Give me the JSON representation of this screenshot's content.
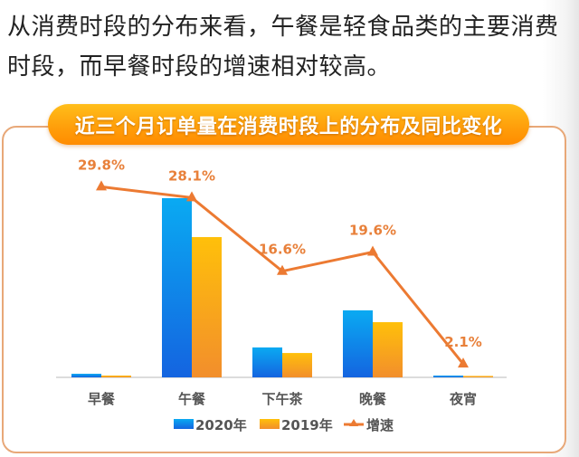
{
  "intro": {
    "line1": "从消费时段的分布来看，午餐是轻食品类的主要消费",
    "line2": "时段，而早餐时段的增速相对较高。"
  },
  "colors": {
    "bar2020_top": "#0aaaf2",
    "bar2020_bottom": "#1464e0",
    "bar2019_top": "#ffc00a",
    "bar2019_bottom": "#f28e2c",
    "growth_line": "#ec7a32",
    "frame_border": "#e8a878",
    "axis": "#dcdcdc"
  },
  "chart_data": {
    "type": "bar",
    "title": "近三个月订单量在消费时段上的分布及同比变化",
    "xlabel": "",
    "ylabel": "",
    "categories": [
      "早餐",
      "午餐",
      "下午茶",
      "晚餐",
      "夜宵"
    ],
    "series": [
      {
        "name": "2020年",
        "kind": "bar",
        "values": [
          2.0,
          100,
          16.7,
          37.4,
          1.0
        ]
      },
      {
        "name": "2019年",
        "kind": "bar",
        "values": [
          1.0,
          78.3,
          13.6,
          30.8,
          0.8
        ]
      },
      {
        "name": "增速",
        "kind": "line",
        "axis": "secondary",
        "values": [
          29.8,
          28.1,
          16.6,
          19.6,
          2.1
        ],
        "labels": [
          "29.8%",
          "28.1%",
          "16.6%",
          "19.6%",
          "2.1%"
        ]
      }
    ],
    "ylim": [
      0,
      100
    ],
    "y2lim": [
      0,
      30
    ],
    "value_note": "bar values are relative index (午餐 2020年 = 100); no axis scale shown",
    "grid": false,
    "legend": "bottom"
  }
}
